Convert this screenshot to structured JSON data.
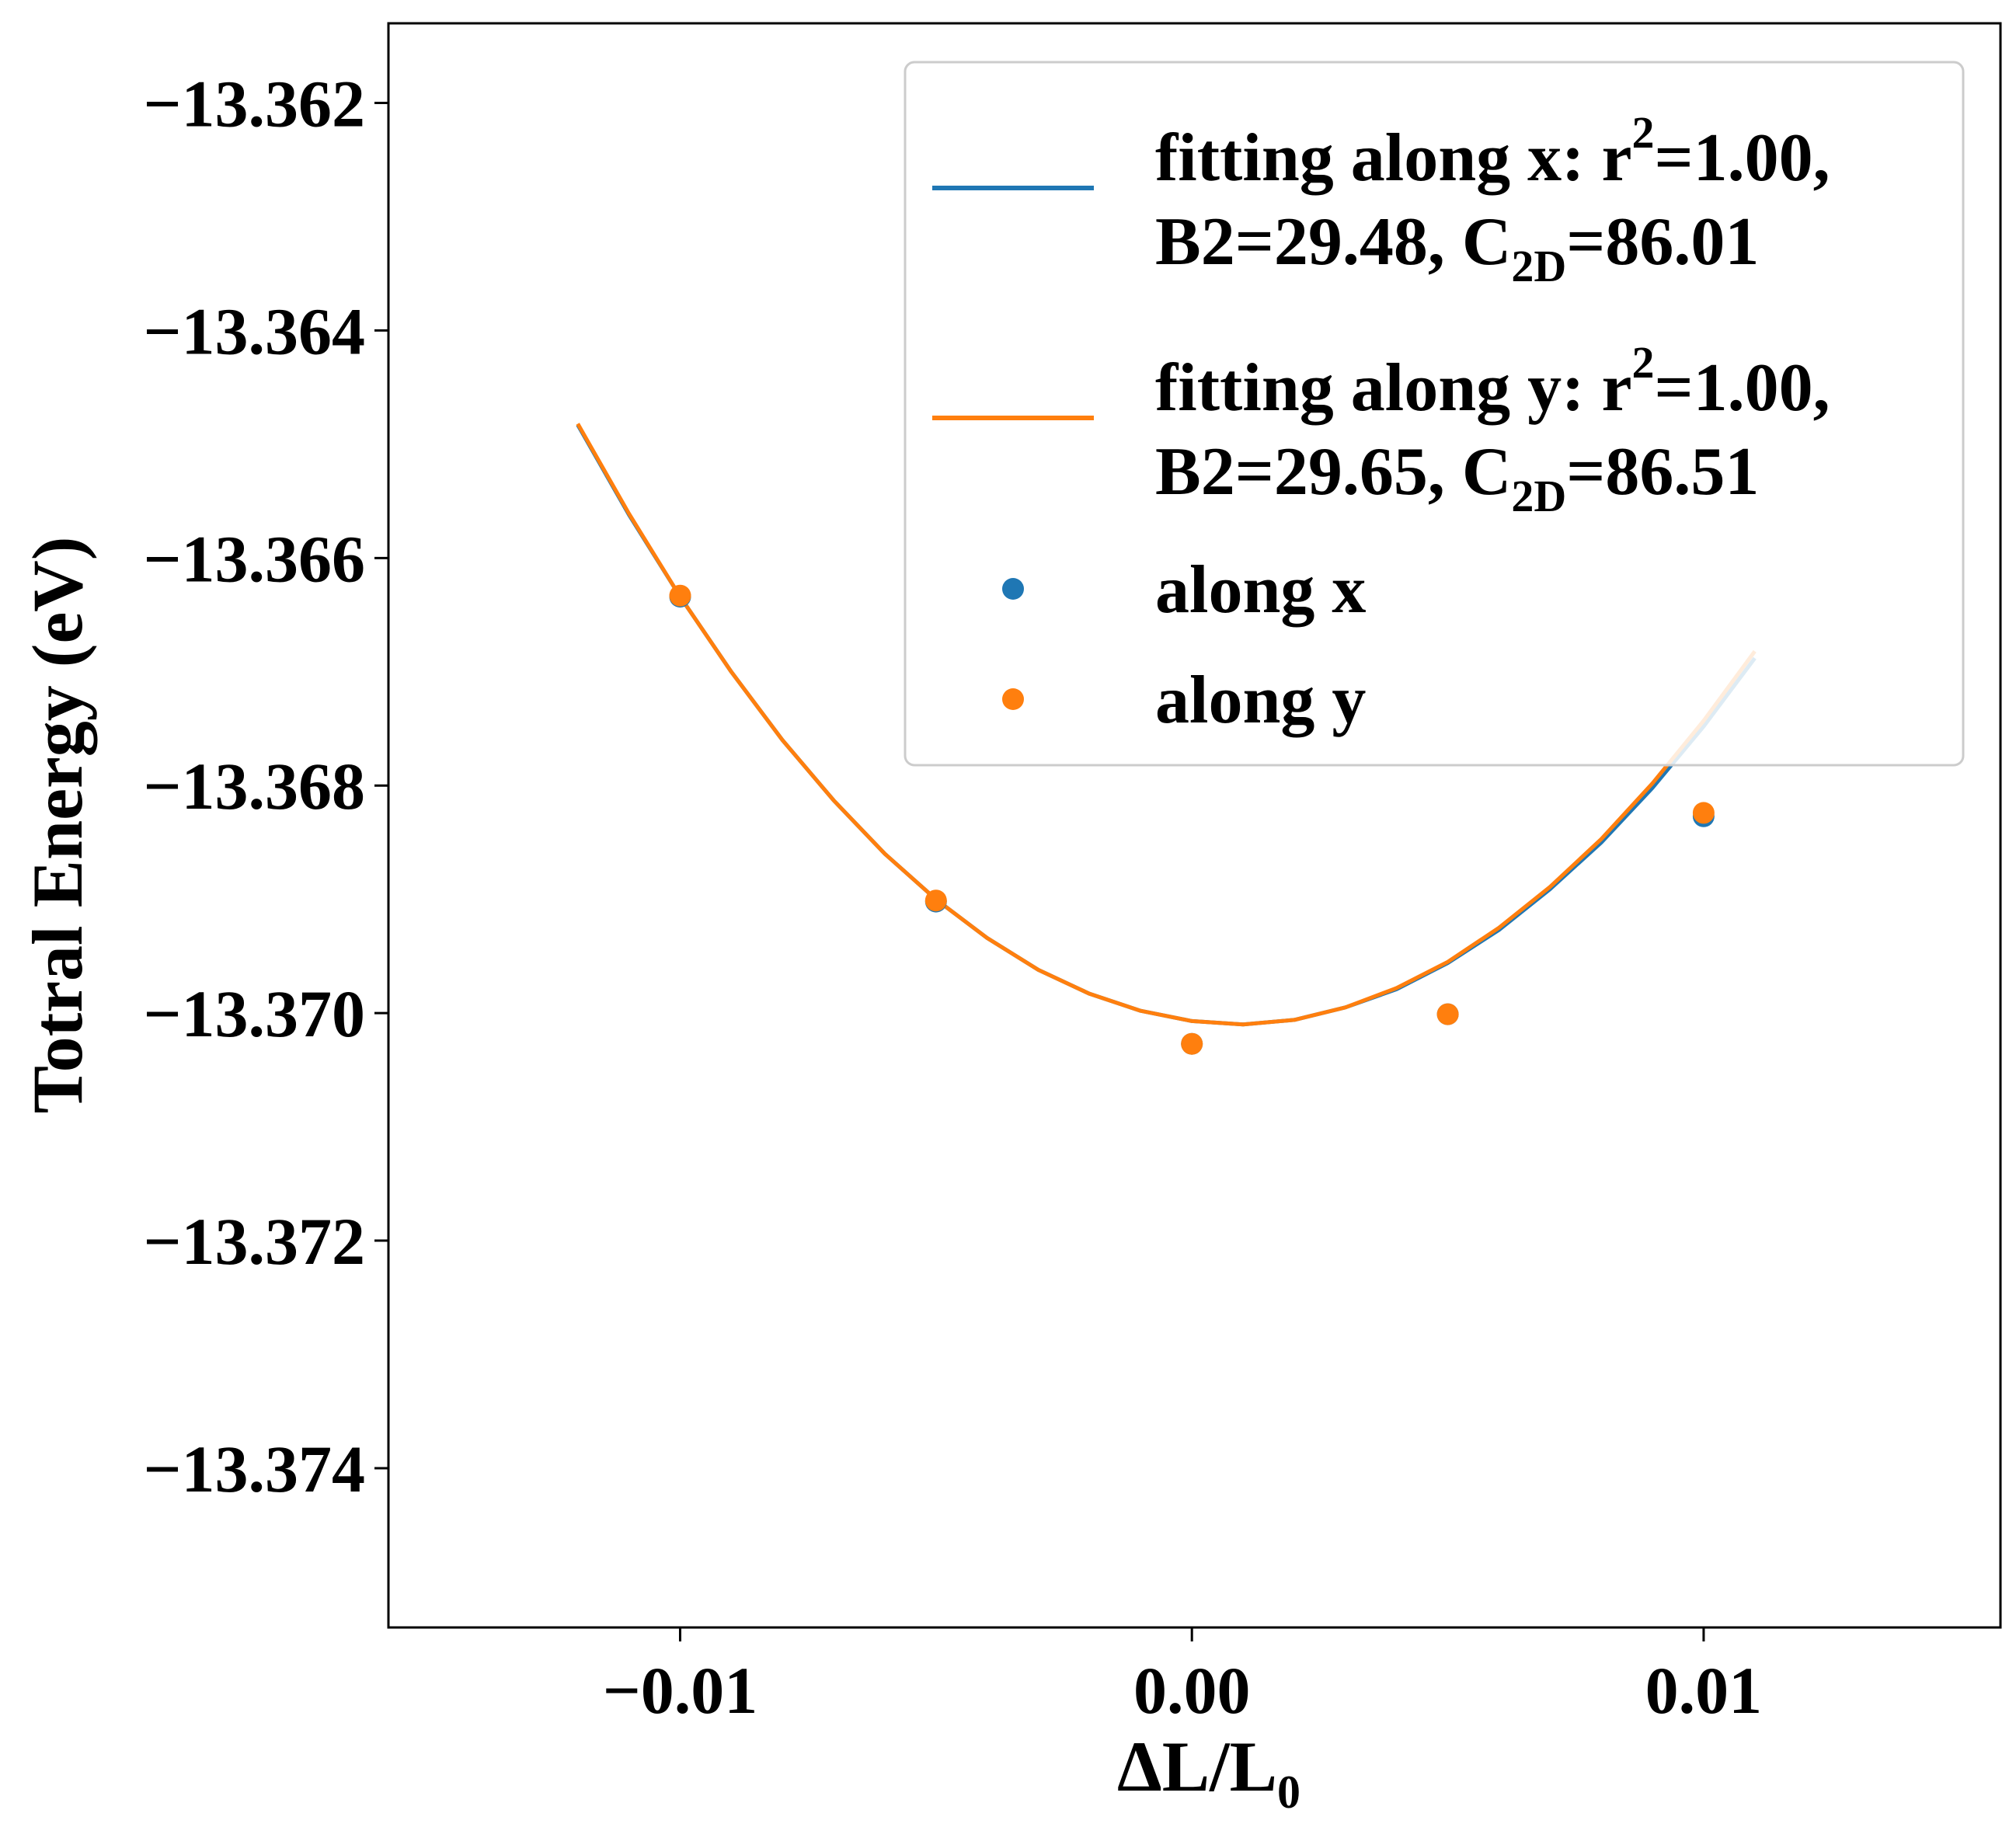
{
  "chart_data": {
    "type": "line",
    "xlabel": "ΔL/L",
    "xlabel_sub": "0",
    "ylabel": "Totral Energy (eV)",
    "xlim": [
      -0.0157,
      0.0158
    ],
    "ylim": [
      -13.3754,
      -13.3613
    ],
    "x_ticks": [
      -0.01,
      0.0,
      0.01
    ],
    "x_tick_labels": [
      "−0.01",
      "0.00",
      "0.01"
    ],
    "y_ticks": [
      -13.362,
      -13.364,
      -13.366,
      -13.368,
      -13.37,
      -13.372,
      -13.374
    ],
    "y_tick_labels": [
      "−13.362",
      "−13.364",
      "−13.366",
      "−13.368",
      "−13.370",
      "−13.372",
      "−13.374"
    ],
    "grid": false,
    "legend_position": "top-right",
    "colors": {
      "x": "#1f77b4",
      "y": "#ff7f0e"
    },
    "series": [
      {
        "name": "fitting along x",
        "kind": "line",
        "color": "#1f77b4",
        "legend_line1": "fitting along x: r",
        "legend_line1_sup": "2",
        "legend_line1_tail": "=1.00,",
        "legend_line2": "B2=29.48, C",
        "legend_line2_sub": "2D",
        "legend_line2_tail": "=86.01",
        "x": [
          -0.012,
          -0.011,
          -0.01,
          -0.009,
          -0.008,
          -0.007,
          -0.006,
          -0.005,
          -0.004,
          -0.003,
          -0.002,
          -0.001,
          0.0,
          0.001,
          0.002,
          0.003,
          0.004,
          0.005,
          0.006,
          0.007,
          0.008,
          0.009,
          0.01,
          0.011
        ],
        "y": [
          -13.36483,
          -13.36562,
          -13.36634,
          -13.367,
          -13.3676,
          -13.36813,
          -13.3686,
          -13.369,
          -13.36934,
          -13.36962,
          -13.36983,
          -13.36998,
          -13.37007,
          -13.3701,
          -13.37006,
          -13.36995,
          -13.36979,
          -13.36956,
          -13.36927,
          -13.36891,
          -13.3685,
          -13.36802,
          -13.36748,
          -13.36688
        ]
      },
      {
        "name": "fitting along y",
        "kind": "line",
        "color": "#ff7f0e",
        "legend_line1": "fitting along y: r",
        "legend_line1_sup": "2",
        "legend_line1_tail": "=1.00,",
        "legend_line2": "B2=29.65, C",
        "legend_line2_sub": "2D",
        "legend_line2_tail": "=86.51",
        "x": [
          -0.012,
          -0.011,
          -0.01,
          -0.009,
          -0.008,
          -0.007,
          -0.006,
          -0.005,
          -0.004,
          -0.003,
          -0.002,
          -0.001,
          0.0,
          0.001,
          0.002,
          0.003,
          0.004,
          0.005,
          0.006,
          0.007,
          0.008,
          0.009,
          0.01,
          0.011
        ],
        "y": [
          -13.36482,
          -13.36561,
          -13.36634,
          -13.367,
          -13.3676,
          -13.36813,
          -13.3686,
          -13.369,
          -13.36934,
          -13.36962,
          -13.36983,
          -13.36998,
          -13.37007,
          -13.3701,
          -13.37006,
          -13.36995,
          -13.36978,
          -13.36955,
          -13.36925,
          -13.36889,
          -13.36847,
          -13.36798,
          -13.36743,
          -13.36682
        ]
      },
      {
        "name": "along x",
        "kind": "scatter",
        "color": "#1f77b4",
        "legend_label": "along x",
        "x": [
          -0.01,
          -0.005,
          0.0,
          0.005,
          0.01
        ],
        "y": [
          -13.36634,
          -13.36902,
          -13.37027,
          -13.37001,
          -13.36827
        ]
      },
      {
        "name": "along y",
        "kind": "scatter",
        "color": "#ff7f0e",
        "legend_label": "along y",
        "x": [
          -0.01,
          -0.005,
          0.0,
          0.005,
          0.01
        ],
        "y": [
          -13.36633,
          -13.36901,
          -13.37027,
          -13.37001,
          -13.36824
        ]
      }
    ]
  }
}
